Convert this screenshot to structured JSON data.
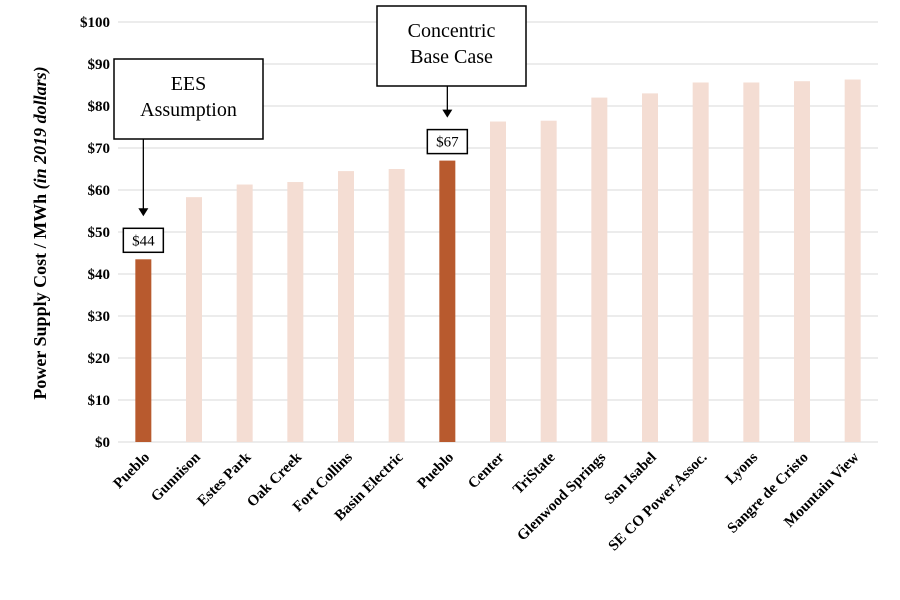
{
  "chart_data": {
    "type": "bar",
    "title": "",
    "xlabel": "",
    "ylabel_main": "Power Supply Cost / MWh ",
    "ylabel_italic": "(in 2019 dollars)",
    "ylim": [
      0,
      100
    ],
    "yticks": [
      0,
      10,
      20,
      30,
      40,
      50,
      60,
      70,
      80,
      90,
      100
    ],
    "ytick_labels": [
      "$0",
      "$10",
      "$20",
      "$30",
      "$40",
      "$50",
      "$60",
      "$70",
      "$80",
      "$90",
      "$100"
    ],
    "grid": "horizontal",
    "categories": [
      "Pueblo",
      "Gunnison",
      "Estes Park",
      "Oak Creek",
      "Fort Collins",
      "Basin Electric",
      "Pueblo",
      "Center",
      "TriState",
      "Glenwood Springs",
      "San Isabel",
      "SE CO Power Assoc.",
      "Lyons",
      "Sangre de Cristo",
      "Mountain View"
    ],
    "values": [
      43.5,
      58.3,
      61.3,
      61.9,
      64.5,
      65.0,
      67.0,
      76.3,
      76.5,
      82.0,
      83.0,
      85.6,
      85.6,
      85.9,
      86.3
    ],
    "highlighted": [
      true,
      false,
      false,
      false,
      false,
      false,
      true,
      false,
      false,
      false,
      false,
      false,
      false,
      false,
      false
    ],
    "data_labels": [
      {
        "index": 0,
        "text": "$44"
      },
      {
        "index": 6,
        "text": "$67"
      }
    ],
    "annotations": [
      {
        "index": 0,
        "lines": [
          "EES",
          "Assumption"
        ]
      },
      {
        "index": 6,
        "lines": [
          "Concentric",
          "Base Case"
        ]
      }
    ],
    "colors": {
      "highlight": "#B85A2E",
      "base": "#F4DDD3",
      "grid": "#D9D9D9"
    }
  }
}
